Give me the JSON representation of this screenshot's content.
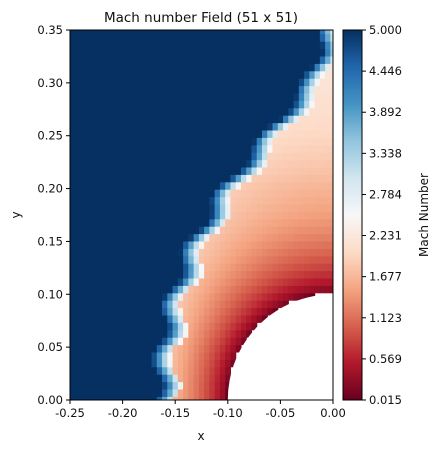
{
  "chart_data": {
    "type": "heatmap",
    "title": "Mach number Field (51 x 51)",
    "xlabel": "x",
    "ylabel": "y",
    "xlim": [
      -0.25,
      0.0
    ],
    "ylim": [
      0.0,
      0.35
    ],
    "x_ticks": [
      "-0.25",
      "-0.20",
      "-0.15",
      "-0.10",
      "-0.05",
      "0.00"
    ],
    "y_ticks": [
      "0.00",
      "0.05",
      "0.10",
      "0.15",
      "0.20",
      "0.25",
      "0.30",
      "0.35"
    ],
    "colormap": "RdBu",
    "colorbar": {
      "label": "Mach Number",
      "range": [
        0.015,
        5.0
      ],
      "ticks": [
        "0.015",
        "0.569",
        "1.123",
        "1.677",
        "2.231",
        "2.784",
        "3.338",
        "3.892",
        "4.446",
        "5.000"
      ]
    },
    "body": {
      "shape": "quarter-circle",
      "center": [
        0.0,
        0.0
      ],
      "radius": 0.1
    },
    "shock_front": [
      [
        -0.162,
        0.0
      ],
      [
        -0.16,
        0.05
      ],
      [
        -0.15,
        0.1
      ],
      [
        -0.13,
        0.15
      ],
      [
        -0.1,
        0.2
      ],
      [
        -0.06,
        0.25
      ],
      [
        -0.02,
        0.3
      ],
      [
        -0.003,
        0.35
      ]
    ],
    "field_levels": {
      "freestream": 5.0,
      "post_shock": 1.9,
      "stagnation": 0.015
    }
  }
}
